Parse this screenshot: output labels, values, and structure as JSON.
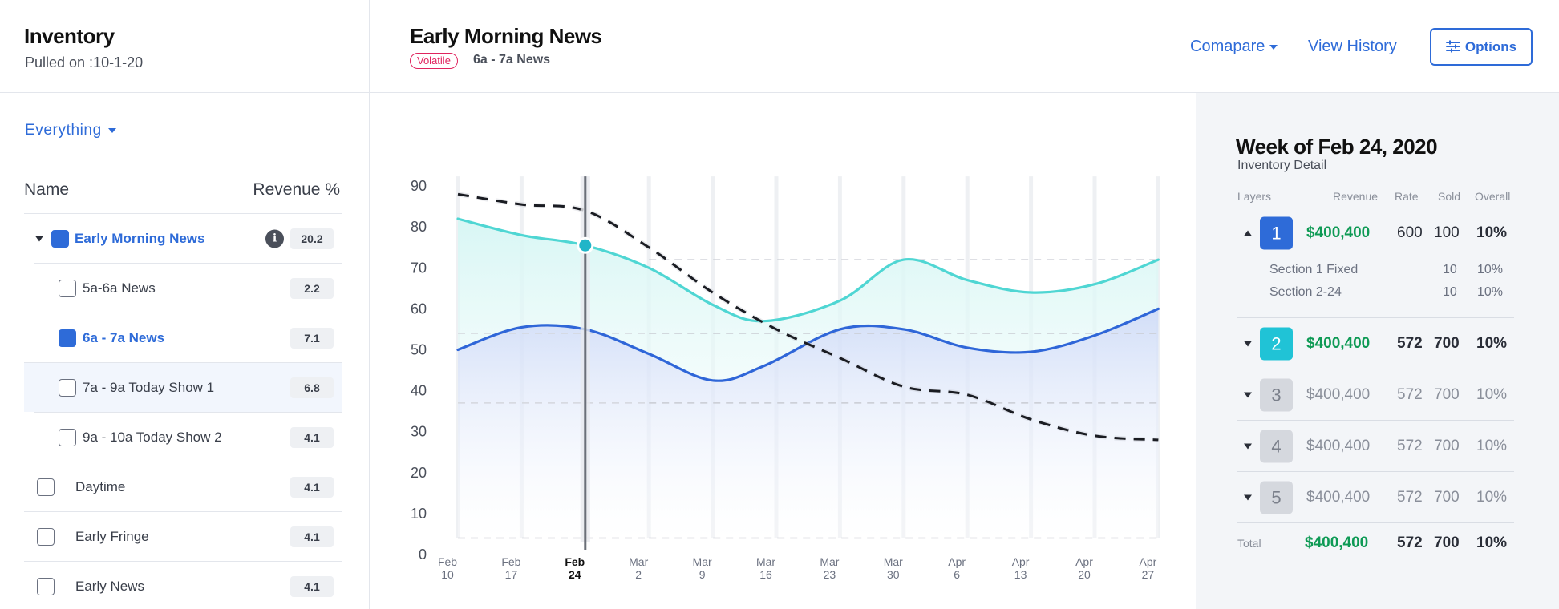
{
  "header": {
    "app_title": "Inventory",
    "pulled_on_label": "Pulled on :",
    "pulled_on_date": "10-1-20",
    "program_title": "Early Morning News",
    "volatile_badge": "Volatile",
    "program_slot": "6a - 7a News",
    "compare_label": "Comapare",
    "history_label": "View History",
    "options_label": "Options"
  },
  "sidebar": {
    "filter": "Everything",
    "col_name": "Name",
    "col_revenue": "Revenue %",
    "items": [
      {
        "label": "Early Morning News",
        "value": "20.2",
        "checked": true
      },
      {
        "label": "5a-6a News",
        "value": "2.2",
        "checked": false
      },
      {
        "label": "6a - 7a News",
        "value": "7.1",
        "checked": true
      },
      {
        "label": "7a - 9a Today Show 1",
        "value": "6.8",
        "checked": false
      },
      {
        "label": "9a - 10a Today Show 2",
        "value": "4.1",
        "checked": false
      },
      {
        "label": "Daytime",
        "value": "4.1",
        "checked": false
      },
      {
        "label": "Early Fringe",
        "value": "4.1",
        "checked": false
      },
      {
        "label": "Early News",
        "value": "4.1",
        "checked": false
      }
    ]
  },
  "chart_data": {
    "type": "line",
    "x_ticks": [
      [
        "Feb",
        "10"
      ],
      [
        "Feb",
        "17"
      ],
      [
        "Feb",
        "24"
      ],
      [
        "Mar",
        "2"
      ],
      [
        "Mar",
        "9"
      ],
      [
        "Mar",
        "16"
      ],
      [
        "Mar",
        "23"
      ],
      [
        "Mar",
        "30"
      ],
      [
        "Apr",
        "6"
      ],
      [
        "Apr",
        "13"
      ],
      [
        "Apr",
        "20"
      ],
      [
        "Apr",
        "27"
      ]
    ],
    "selected_index": 2,
    "ylim": [
      0,
      90
    ],
    "y_ticks": [
      0,
      10,
      20,
      30,
      40,
      50,
      60,
      70,
      80,
      90
    ],
    "reference_lines": [
      72,
      54,
      37,
      4
    ],
    "series": [
      {
        "color": "#4fd6d3",
        "fill": "#dff8f7",
        "style": "solid",
        "x": [
          0,
          1,
          2,
          3,
          4,
          4.8,
          6,
          7,
          8,
          9,
          10,
          11
        ],
        "values": [
          82,
          78,
          75.5,
          70,
          61,
          57,
          62,
          72,
          67,
          64,
          66,
          72
        ]
      },
      {
        "color": "#2f66d8",
        "fill": "#dbe6fa",
        "style": "solid",
        "x": [
          0,
          1,
          2,
          3,
          4,
          4.8,
          6,
          7,
          8,
          9,
          10,
          11
        ],
        "values": [
          50,
          55.5,
          55,
          49,
          42.5,
          46,
          55,
          55,
          50.5,
          49.5,
          53.5,
          60
        ]
      },
      {
        "color": "#1a1c22",
        "style": "dashed",
        "x": [
          0,
          1,
          2,
          3,
          4,
          5,
          6,
          7,
          8,
          9,
          10,
          11
        ],
        "values": [
          88,
          85.5,
          84,
          75,
          64,
          55,
          48,
          41,
          39,
          33,
          29,
          28
        ]
      }
    ]
  },
  "detail": {
    "title": "Week of Feb 24, 2020",
    "subtitle": "Inventory Detail",
    "columns": {
      "layers": "Layers",
      "revenue": "Revenue",
      "rate": "Rate",
      "sold": "Sold",
      "overall": "Overall"
    },
    "layers": [
      {
        "num": "1",
        "revenue": "$400,400",
        "rate": "600",
        "sold": "100",
        "overall": "10%"
      },
      {
        "num": "2",
        "revenue": "$400,400",
        "rate": "572",
        "sold": "700",
        "overall": "10%"
      },
      {
        "num": "3",
        "revenue": "$400,400",
        "rate": "572",
        "sold": "700",
        "overall": "10%"
      },
      {
        "num": "4",
        "revenue": "$400,400",
        "rate": "572",
        "sold": "700",
        "overall": "10%"
      },
      {
        "num": "5",
        "revenue": "$400,400",
        "rate": "572",
        "sold": "700",
        "overall": "10%"
      }
    ],
    "sub_rows": [
      {
        "label": "Section 1 Fixed",
        "sold": "10",
        "overall": "10%"
      },
      {
        "label": "Section 2-24",
        "sold": "10",
        "overall": "10%"
      }
    ],
    "total": {
      "label": "Total",
      "revenue": "$400,400",
      "rate": "572",
      "sold": "700",
      "overall": "10%"
    },
    "colors": {
      "layer1": "#2e6bd8",
      "layer2": "#20c3d6",
      "revenue_green": "#0e9a55"
    }
  }
}
